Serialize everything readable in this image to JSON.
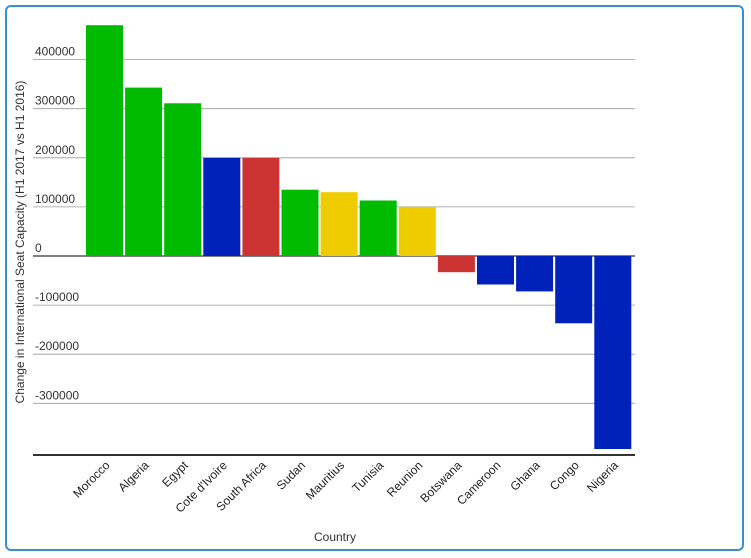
{
  "chart_data": {
    "type": "bar",
    "title": "",
    "xlabel": "Country",
    "ylabel": "Change in International Seat Capacity (H1 2017 vs H1 2016)",
    "categories": [
      "Morocco",
      "Algeria",
      "Egypt",
      "Cote d'Ivoire",
      "South Africa",
      "Sudan",
      "Mauritius",
      "Tunisia",
      "Reunion",
      "Botswana",
      "Cameroon",
      "Ghana",
      "Congo",
      "Nigeria"
    ],
    "values": [
      470000,
      343000,
      311000,
      200000,
      200000,
      135000,
      130000,
      113000,
      100000,
      -33000,
      -58000,
      -72000,
      -137000,
      -393000
    ],
    "bar_colors": [
      "#00bb00",
      "#00bb00",
      "#00bb00",
      "#0022bb",
      "#cc3333",
      "#00bb00",
      "#eecc00",
      "#00bb00",
      "#eecc00",
      "#cc3333",
      "#0022bb",
      "#0022bb",
      "#0022bb",
      "#0022bb"
    ],
    "yticks": [
      400000,
      300000,
      200000,
      100000,
      0,
      -100000,
      -200000,
      -300000
    ],
    "ytick_labels": [
      "400000",
      "300000",
      "200000",
      "100000",
      "0",
      "-100000",
      "-200000",
      "-300000"
    ],
    "ylim": [
      -400000,
      500000
    ],
    "grid": true,
    "legend": "none"
  },
  "colors": {
    "frame_border": "#3b8fd0",
    "grid": "#999999",
    "axis": "#333333"
  }
}
